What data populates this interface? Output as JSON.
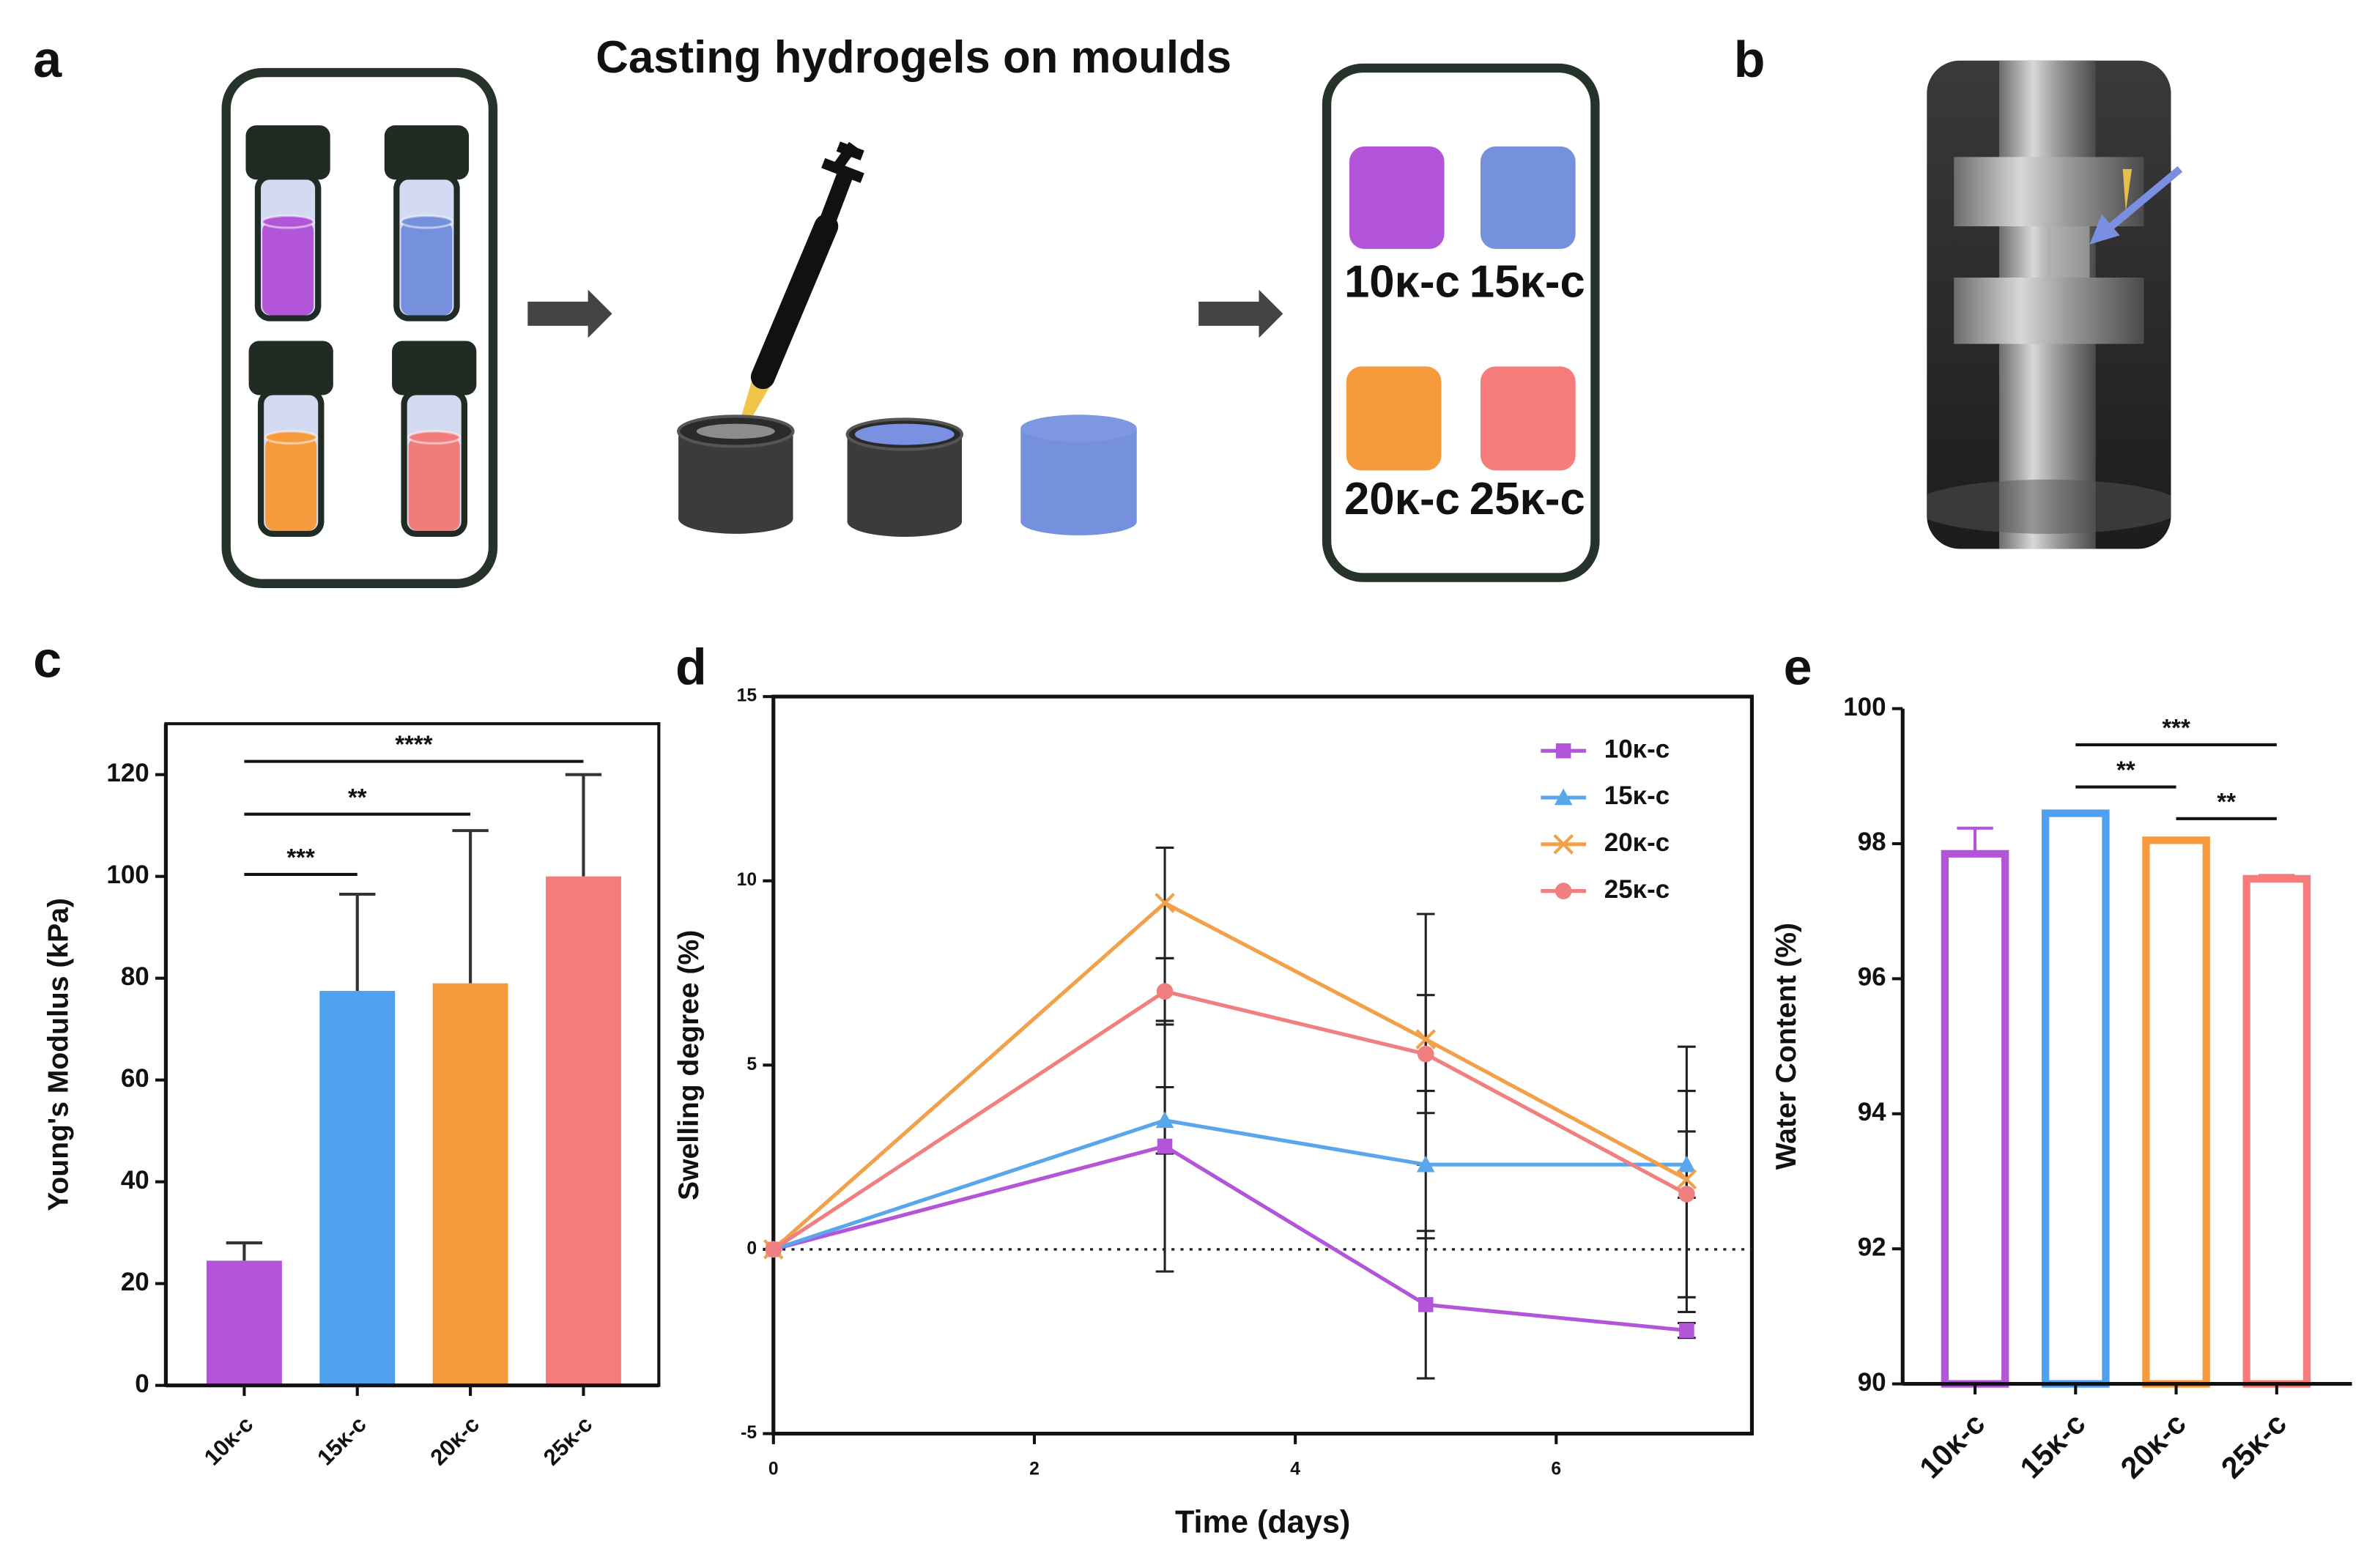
{
  "panels": {
    "a": {
      "label": "a",
      "title": "Casting hydrogels on moulds",
      "samples": [
        "10κ-c",
        "15κ-c",
        "20κ-c",
        "25κ-c"
      ]
    },
    "b": {
      "label": "b"
    }
  },
  "chart_data": [
    {
      "type": "bar",
      "panel_label": "c",
      "bar_style": "filled",
      "ylabel": "Young's Modulus (kPa)",
      "categories": [
        "10κ-c",
        "15κ-c",
        "20κ-c",
        "25κ-c"
      ],
      "values": [
        24.5,
        77.5,
        79,
        100
      ],
      "errors": [
        3.5,
        19,
        30,
        20
      ],
      "colors": [
        "#b355d8",
        "#4fa1f0",
        "#f59b3d",
        "#f67c7c"
      ],
      "ylim": [
        0,
        130
      ],
      "yticks": [
        0,
        20,
        40,
        60,
        80,
        100,
        120
      ],
      "significance": [
        {
          "from": 0,
          "to": 1,
          "label": "***"
        },
        {
          "from": 0,
          "to": 2,
          "label": "**"
        },
        {
          "from": 0,
          "to": 3,
          "label": "****"
        }
      ]
    },
    {
      "type": "line",
      "panel_label": "d",
      "xlabel": "Time (days)",
      "ylabel": "Swelling degree (%)",
      "x": [
        0,
        3,
        5,
        7
      ],
      "series": [
        {
          "name": "10κ-c",
          "color": "#b355d8",
          "marker": "square",
          "values": [
            0,
            2.8,
            -1.5,
            -2.2
          ],
          "errors": [
            0,
            3.4,
            2,
            0.2
          ]
        },
        {
          "name": "15κ-c",
          "color": "#5aa6ea",
          "marker": "triangle",
          "values": [
            0,
            3.5,
            2.3,
            2.3
          ],
          "errors": [
            0,
            0.9,
            2,
            0.9
          ]
        },
        {
          "name": "20κ-c",
          "color": "#f2a04a",
          "marker": "cross",
          "values": [
            0,
            9.4,
            5.7,
            1.9
          ],
          "errors": [
            0,
            1.5,
            3.4,
            3.6
          ]
        },
        {
          "name": "25κ-c",
          "color": "#f08080",
          "marker": "circle",
          "values": [
            0,
            7.0,
            5.3,
            1.5
          ],
          "errors": [
            0,
            0.9,
            1.6,
            2.8
          ]
        }
      ],
      "xlim": [
        0,
        7.5
      ],
      "xticks": [
        0,
        2,
        4,
        6
      ],
      "ylim": [
        -5,
        15
      ],
      "yticks": [
        -5,
        0,
        5,
        10,
        15
      ],
      "zero_line": "dotted",
      "legend": "top-right"
    },
    {
      "type": "bar",
      "panel_label": "e",
      "bar_style": "outline",
      "ylabel": "Water Content (%)",
      "categories": [
        "10κ-c",
        "15κ-c",
        "20κ-c",
        "25κ-c"
      ],
      "values": [
        97.85,
        98.45,
        98.05,
        97.48
      ],
      "errors": [
        0.38,
        0.03,
        0.03,
        0.05
      ],
      "colors": [
        "#b355d8",
        "#4fa1f0",
        "#f59b3d",
        "#f67c7c"
      ],
      "ylim": [
        90,
        100
      ],
      "yticks": [
        90,
        92,
        94,
        96,
        98,
        100
      ],
      "significance": [
        {
          "from": 1,
          "to": 2,
          "label": "**"
        },
        {
          "from": 1,
          "to": 3,
          "label": "***"
        },
        {
          "from": 2,
          "to": 3,
          "label": "**"
        }
      ]
    }
  ]
}
